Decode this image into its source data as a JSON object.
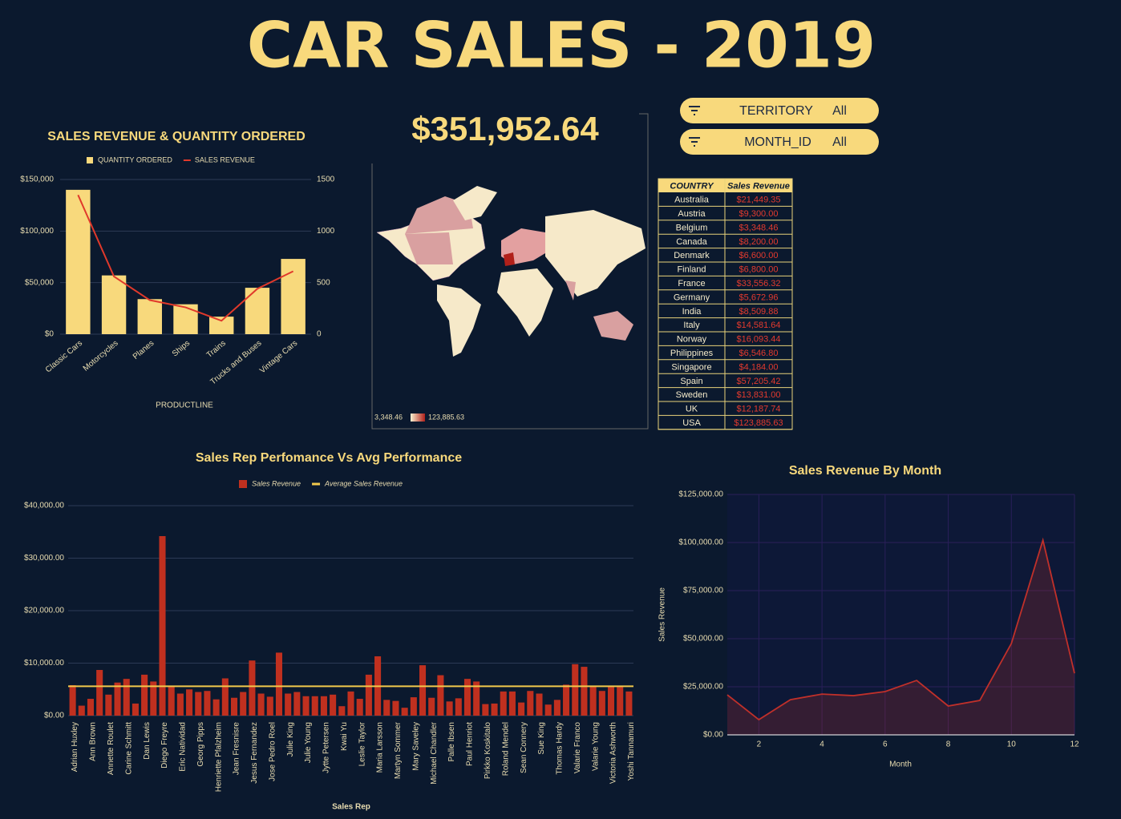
{
  "header": {
    "title": "CAR SALES - 2019",
    "kpi": "$351,952.64"
  },
  "filters": [
    {
      "label": "TERRITORY",
      "value": "All"
    },
    {
      "label": "MONTH_ID",
      "value": "All"
    }
  ],
  "map": {
    "color_range": {
      "values": [
        3348.46,
        123885.63
      ],
      "value_labels": [
        "3,348.46",
        "123,885.63"
      ],
      "colors": [
        "#fbf1d0",
        "#b0201a"
      ]
    }
  },
  "table": {
    "columns": [
      "COUNTRY",
      "Sales Revenue"
    ],
    "rows": [
      [
        "Australia",
        "$21,449.35"
      ],
      [
        "Austria",
        "$9,300.00"
      ],
      [
        "Belgium",
        "$3,348.46"
      ],
      [
        "Canada",
        "$8,200.00"
      ],
      [
        "Denmark",
        "$6,600.00"
      ],
      [
        "Finland",
        "$6,800.00"
      ],
      [
        "France",
        "$33,556.32"
      ],
      [
        "Germany",
        "$5,672.96"
      ],
      [
        "India",
        "$8,509.88"
      ],
      [
        "Italy",
        "$14,581.64"
      ],
      [
        "Norway",
        "$16,093.44"
      ],
      [
        "Philippines",
        "$6,546.80"
      ],
      [
        "Singapore",
        "$4,184.00"
      ],
      [
        "Spain",
        "$57,205.42"
      ],
      [
        "Sweden",
        "$13,831.00"
      ],
      [
        "UK",
        "$12,187.74"
      ],
      [
        "USA",
        "$123,885.63"
      ]
    ]
  },
  "chart_data": [
    {
      "type": "combo",
      "title": "SALES REVENUE & QUANTITY ORDERED",
      "xlabel": "PRODUCTLINE",
      "categories": [
        "Classic Cars",
        "Motorcycles",
        "Planes",
        "Ships",
        "Trains",
        "Trucks and Buses",
        "Vintage Cars"
      ],
      "series": [
        {
          "name": "QUANTITY ORDERED",
          "type": "bar",
          "axis": "y2",
          "color": "#f8d97c",
          "values": [
            1400,
            570,
            340,
            290,
            170,
            450,
            730
          ]
        },
        {
          "name": "SALES REVENUE",
          "type": "line",
          "axis": "y",
          "color": "#e0392b",
          "values": [
            135000,
            56000,
            33000,
            26000,
            13000,
            44000,
            61000
          ]
        }
      ],
      "ylim": [
        0,
        150000
      ],
      "yticks": [
        {
          "value": 0,
          "label": "$0"
        },
        {
          "value": 50000,
          "label": "$50,000"
        },
        {
          "value": 100000,
          "label": "$100,000"
        },
        {
          "value": 150000,
          "label": "$150,000"
        }
      ],
      "y2lim": [
        0,
        1500
      ],
      "y2ticks": [
        0,
        500,
        1000,
        1500
      ],
      "grid": true
    },
    {
      "type": "bar",
      "title": "Sales Rep Perfomance Vs Avg Performance",
      "xlabel": "Sales Rep",
      "categories": [
        "Adrian Huxley",
        null,
        "Ann Brown",
        null,
        "Annette Roulet",
        null,
        "Carine Schmitt",
        null,
        "Dan Lewis",
        null,
        "Diego Freyre",
        null,
        "Eric Natividad",
        null,
        "Georg Pipps",
        null,
        "Henriette Pfalzheim",
        null,
        "Jean Fresnisre",
        null,
        "Jesus Fernandez",
        null,
        "Jose Pedro Roel",
        null,
        "Julie King",
        null,
        "Julie Young",
        null,
        "Jytte Petersen",
        null,
        "Kwai Yu",
        null,
        "Leslie Taylor",
        null,
        "Maria Larsson",
        null,
        "Martyn Sommer",
        null,
        "Mary Saveley",
        null,
        "Michael Chandler",
        null,
        "Palle Ibsen",
        null,
        "Paul Henriot",
        null,
        "Pirkko Koskitalo",
        null,
        "Roland Mendel",
        null,
        "Sean Connery",
        null,
        "Sue King",
        null,
        "Thomas Hardy",
        null,
        "Valarie Franco",
        null,
        "Valarie Young",
        null,
        "Victoria Ashworth",
        null,
        "Yoshi Tannamuri"
      ],
      "series": [
        {
          "name": "Sales Revenue",
          "color": "#c0301f",
          "values": [
            5800,
            1900,
            3200,
            8700,
            4000,
            6300,
            7000,
            2300,
            7800,
            6500,
            34200,
            5600,
            4200,
            5000,
            4500,
            4700,
            3100,
            7100,
            3400,
            4500,
            10500,
            4200,
            3600,
            12000,
            4200,
            4500,
            3700,
            3700,
            3700,
            4000,
            1800,
            4600,
            3200,
            7800,
            11300,
            3000,
            2800,
            1500,
            3500,
            9600,
            3400,
            7700,
            2700,
            3300,
            7000,
            6500,
            2200,
            2300,
            4600,
            4600,
            2500,
            4700,
            4200,
            2100,
            3000,
            5900,
            9800,
            9300,
            5500,
            4700,
            5600,
            5700,
            4600
          ]
        }
      ],
      "average": {
        "name": "Average Sales Revenue",
        "color": "#f2c94c",
        "value": 5586.55
      },
      "ylim": [
        0,
        40000
      ],
      "yticks": [
        {
          "value": 0,
          "label": "$0.00"
        },
        {
          "value": 10000,
          "label": "$10,000.00"
        },
        {
          "value": 20000,
          "label": "$20,000.00"
        },
        {
          "value": 30000,
          "label": "$30,000.00"
        },
        {
          "value": 40000,
          "label": "$40,000.00"
        }
      ],
      "grid": true
    },
    {
      "type": "area",
      "title": "Sales Revenue By Month",
      "xlabel": "Month",
      "ylabel": "Sales Revenue",
      "x": [
        1,
        2,
        3,
        4,
        5,
        6,
        7,
        8,
        9,
        10,
        11,
        12
      ],
      "values": [
        20800,
        7900,
        18300,
        21200,
        20400,
        22500,
        28300,
        15000,
        17900,
        47500,
        101200,
        32000
      ],
      "color": "#c0302a",
      "xlim": [
        1,
        12
      ],
      "xticks": [
        2,
        4,
        6,
        8,
        10,
        12
      ],
      "ylim": [
        0,
        125000
      ],
      "yticks": [
        {
          "value": 0,
          "label": "$0.00"
        },
        {
          "value": 25000,
          "label": "$25,000.00"
        },
        {
          "value": 50000,
          "label": "$50,000.00"
        },
        {
          "value": 75000,
          "label": "$75,000.00"
        },
        {
          "value": 100000,
          "label": "$100,000.00"
        },
        {
          "value": 125000,
          "label": "$125,000.00"
        }
      ],
      "grid": true
    }
  ]
}
